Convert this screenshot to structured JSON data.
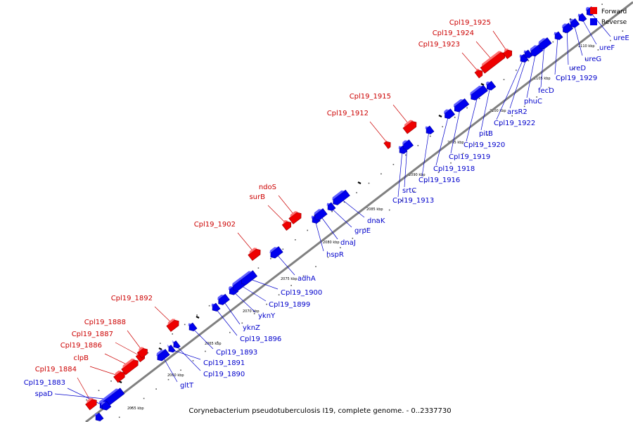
{
  "caption": "Corynebacterium pseudotuberculosis I19, complete genome. - 0..2337730",
  "legend": {
    "forward": {
      "label": "Forward",
      "color": "#ee0000"
    },
    "reverse": {
      "label": "Reverse",
      "color": "#0000ee"
    }
  },
  "colors": {
    "backbone": "#808080",
    "forward_text": "#cc0000",
    "reverse_text": "#0000cc"
  },
  "ticks": [
    "2055 kbp",
    "2060 kbp",
    "2065 kbp",
    "2070 kbp",
    "2075 kbp",
    "2080 kbp",
    "2085 kbp",
    "2090 kbp",
    "2095 kbp",
    "2100 kbp",
    "2105 kbp",
    "2110 kbp"
  ],
  "forward_genes": [
    "Cpl19_1884",
    "clpB",
    "Cpl19_1886",
    "Cpl19_1887",
    "Cpl19_1888",
    "Cpl19_1892",
    "Cpl19_1902",
    "surB",
    "ndoS",
    "Cpl19_1912",
    "Cpl19_1915",
    "Cpl19_1923",
    "Cpl19_1924",
    "Cpl19_1925"
  ],
  "reverse_genes": [
    "spaD",
    "Cpl19_1883",
    "gltT",
    "Cpl19_1890",
    "Cpl19_1891",
    "Cpl19_1893",
    "Cpl19_1896",
    "yknZ",
    "yknY",
    "Cpl19_1899",
    "Cpl19_1900",
    "adhA",
    "hspR",
    "dnaJ",
    "grpE",
    "dnaK",
    "Cpl19_1913",
    "srtC",
    "Cpl19_1916",
    "Cpl19_1918",
    "Cpl19_1919",
    "Cpl19_1920",
    "pitB",
    "Cpl19_1922",
    "arsR2",
    "phuC",
    "fecD",
    "Cpl19_1929",
    "ureD",
    "ureG",
    "ureF",
    "ureE"
  ]
}
